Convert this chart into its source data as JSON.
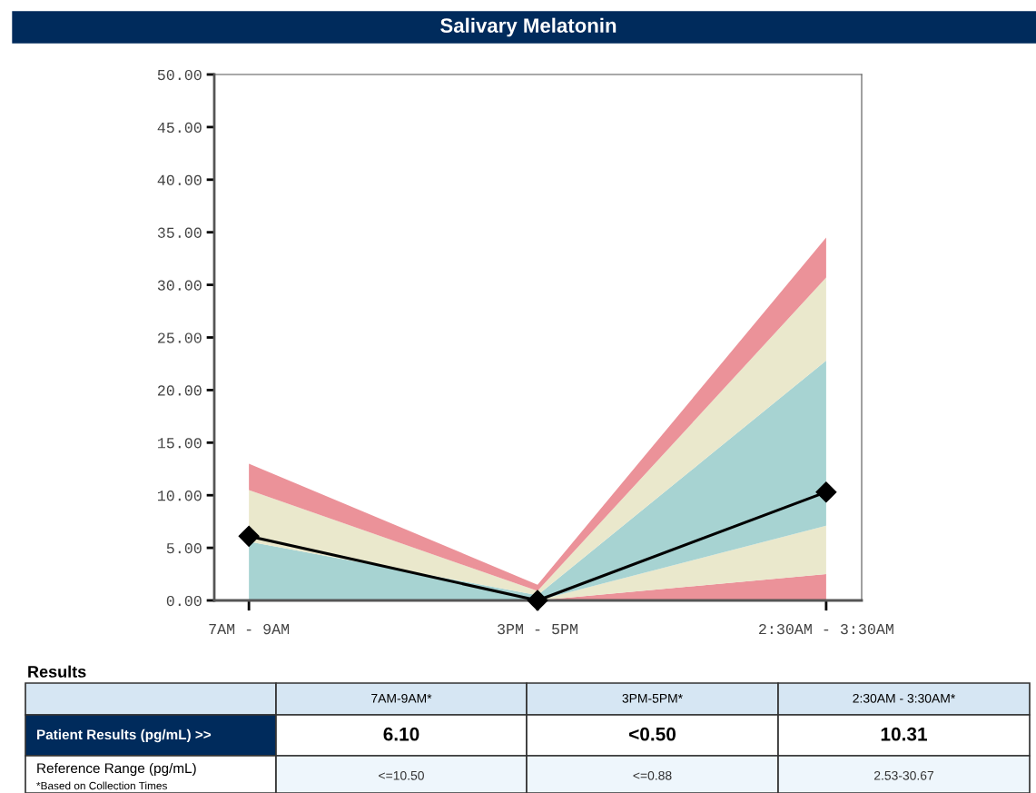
{
  "chart_data": {
    "type": "area",
    "title": "Salivary Melatonin",
    "categories": [
      "7AM - 9AM",
      "3PM - 5PM",
      "2:30AM - 3:30AM"
    ],
    "stacked": true,
    "series": [
      {
        "color": "#eb9299",
        "values": [
          0,
          0,
          2.5
        ]
      },
      {
        "color": "#eae8cc",
        "values": [
          0,
          0,
          4.6
        ]
      },
      {
        "color": "#a7d3d2",
        "values": [
          5.6,
          0.5,
          15.7
        ]
      },
      {
        "color": "#eae8cc",
        "values": [
          4.9,
          0.4,
          7.9
        ]
      },
      {
        "color": "#eb9299",
        "values": [
          2.5,
          0.6,
          3.8
        ]
      },
      {
        "type": "line",
        "color": "#000000",
        "marker": "diamond",
        "values": [
          6.1,
          0,
          10.3
        ]
      }
    ],
    "ylim": [
      0,
      50
    ],
    "yticks": [
      {
        "value": 0,
        "label": "0.00"
      },
      {
        "value": 5,
        "label": "5.00"
      },
      {
        "value": 10,
        "label": "10.00"
      },
      {
        "value": 15,
        "label": "15.00"
      },
      {
        "value": 20,
        "label": "20.00"
      },
      {
        "value": 25,
        "label": "25.00"
      },
      {
        "value": 30,
        "label": "30.00"
      },
      {
        "value": 35,
        "label": "35.00"
      },
      {
        "value": 40,
        "label": "40.00"
      },
      {
        "value": 45,
        "label": "45.00"
      },
      {
        "value": 50,
        "label": "50.00"
      }
    ],
    "grid": false,
    "annotations": [
      "Results",
      "7AM-9AM*",
      "3PM-5PM*",
      "2:30AM - 3:30AM*",
      "Patient Results (pg/mL) >>",
      "Reference Range (pg/mL)",
      "*Based on Collection Times",
      "<=10.50",
      "<=0.88",
      "2.53-30.67",
      "6.10",
      "<0.50",
      "10.31"
    ]
  }
}
